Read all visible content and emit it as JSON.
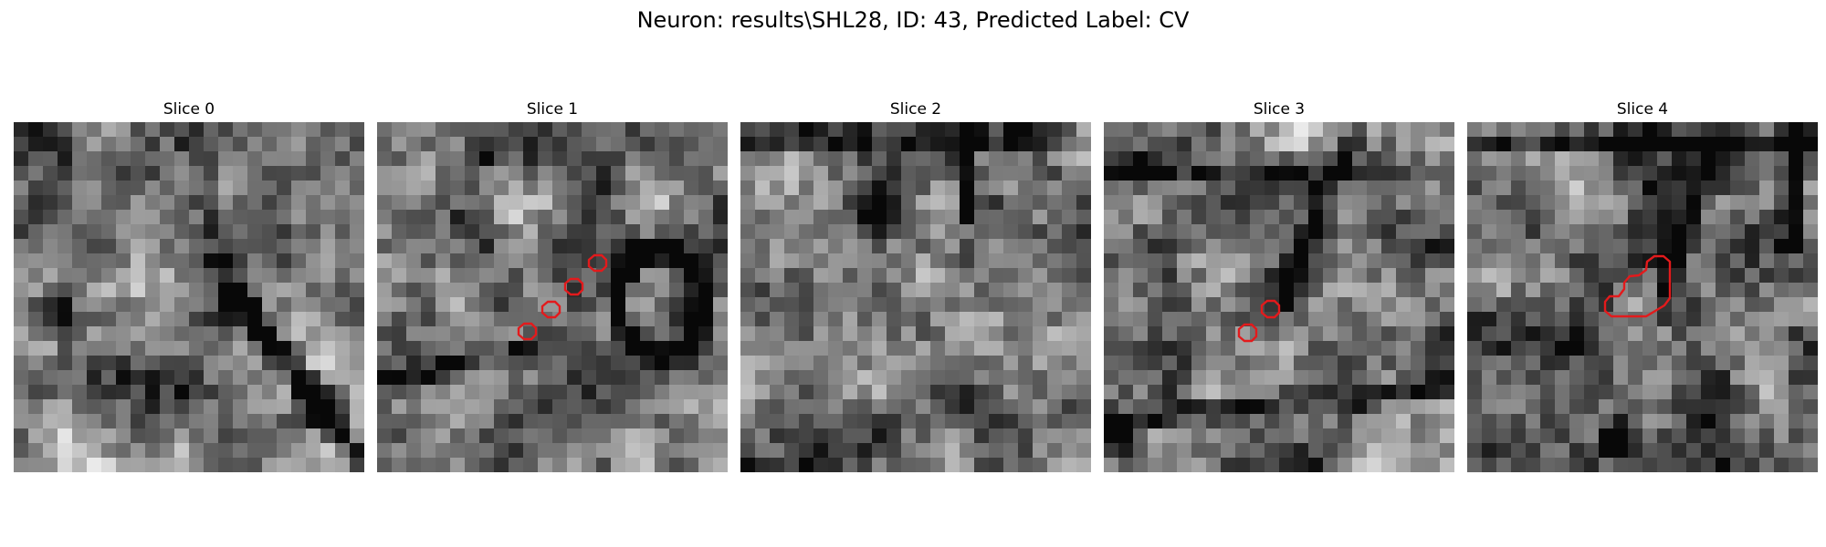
{
  "figure": {
    "title": "Neuron: results\\SHL28, ID: 43, Predicted Label: CV"
  },
  "image_grid": {
    "rows": 24,
    "cols": 24,
    "colormap": "gray"
  },
  "annotation": {
    "outline_color": "#e31a1c"
  },
  "panels": [
    {
      "title": "Slice 0",
      "seed": 11,
      "features": "soma_right"
    },
    {
      "title": "Slice 1",
      "seed": 23,
      "features": "ring_right"
    },
    {
      "title": "Slice 2",
      "seed": 37,
      "features": "dark_top"
    },
    {
      "title": "Slice 3",
      "seed": 41,
      "features": "diagonal_band"
    },
    {
      "title": "Slice 4",
      "seed": 59,
      "features": "dark_edges"
    }
  ]
}
